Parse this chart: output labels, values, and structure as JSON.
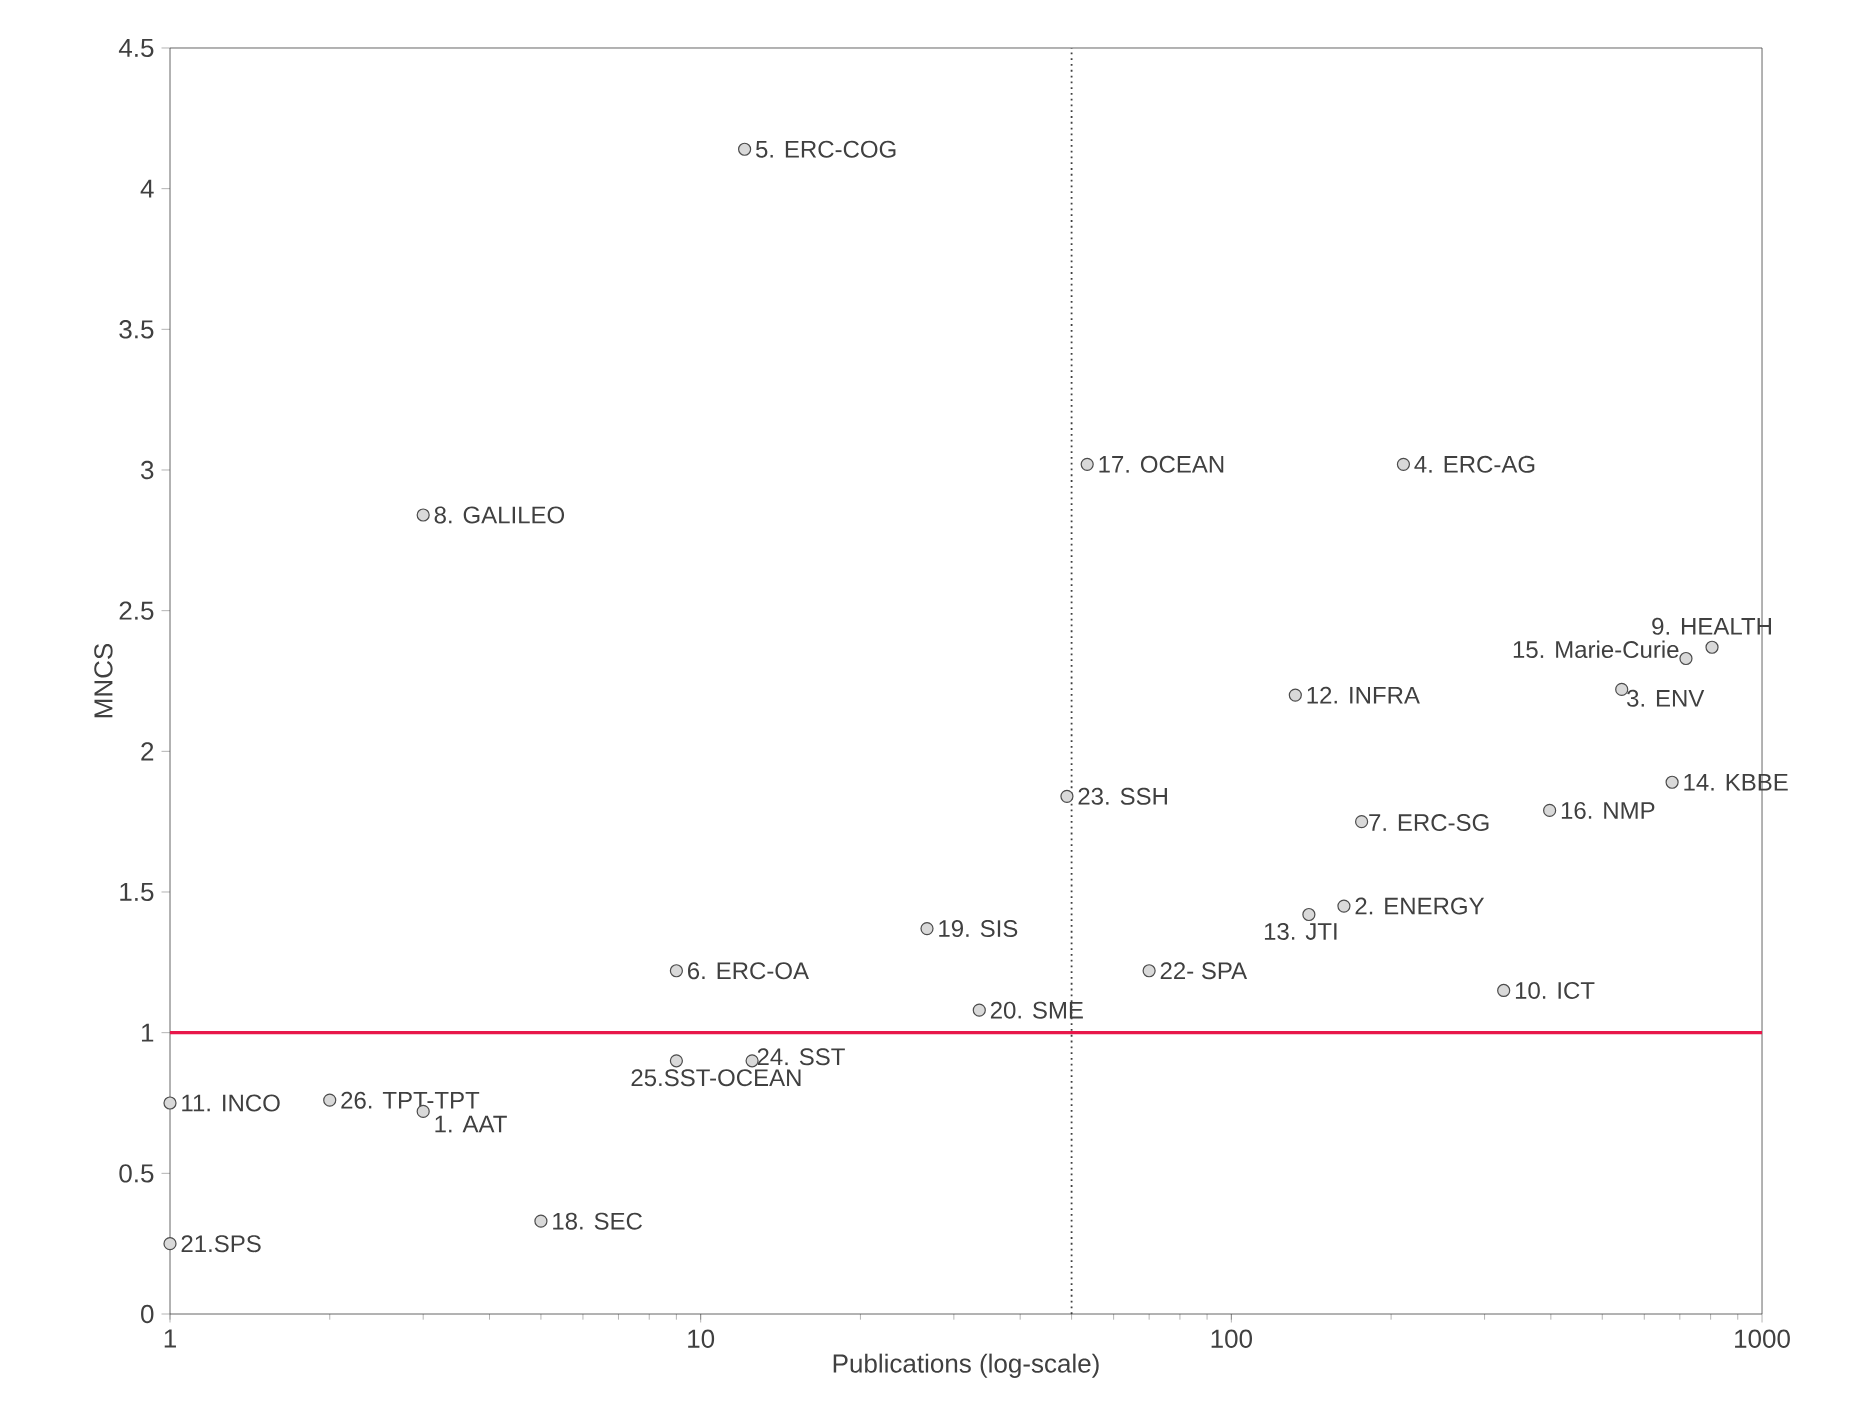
{
  "chart_data": {
    "type": "scatter",
    "xlabel": "Publications (log-scale)",
    "ylabel": "MNCS",
    "log": "x",
    "marker": "circle",
    "color": "#d9d9d9",
    "xlim": [
      1,
      1000
    ],
    "ylim": [
      0,
      4.5
    ],
    "xticks": [
      1,
      10,
      100,
      1000
    ],
    "yticks": [
      0,
      0.5,
      1,
      1.5,
      2,
      2.5,
      3,
      3.5,
      4,
      4.5
    ],
    "x": [
      3,
      163,
      544,
      211,
      12.1,
      9,
      176,
      3,
      805,
      326,
      1,
      132,
      140,
      677,
      719,
      398,
      53.5,
      5,
      26.7,
      33.5,
      1,
      70,
      49,
      12.5,
      9,
      2
    ],
    "values": [
      0.72,
      1.45,
      2.22,
      3.02,
      4.14,
      1.22,
      1.75,
      2.84,
      2.37,
      1.15,
      0.75,
      2.2,
      1.42,
      1.89,
      2.33,
      1.79,
      3.02,
      0.33,
      1.37,
      1.08,
      0.25,
      1.22,
      1.84,
      0.9,
      0.9,
      0.76
    ],
    "ref_lines": [
      {
        "axis": "y",
        "value": 1,
        "color": "#e8174a",
        "line_style": "solid"
      },
      {
        "axis": "x",
        "value": 50,
        "color": "#404040",
        "line_style": "dotted"
      }
    ],
    "annotations": [
      {
        "text": "1. AAT",
        "x": 3,
        "y": 0.72
      },
      {
        "text": "2. ENERGY",
        "x": 163,
        "y": 1.45
      },
      {
        "text": "3. ENV",
        "x": 544,
        "y": 2.22
      },
      {
        "text": "4. ERC-AG",
        "x": 211,
        "y": 3.02
      },
      {
        "text": "5. ERC-COG",
        "x": 12.1,
        "y": 4.14
      },
      {
        "text": "6. ERC-OA",
        "x": 9,
        "y": 1.22
      },
      {
        "text": "7. ERC-SG",
        "x": 176,
        "y": 1.75
      },
      {
        "text": "8. GALILEO",
        "x": 3,
        "y": 2.84
      },
      {
        "text": "9. HEALTH",
        "x": 805,
        "y": 2.37
      },
      {
        "text": "10. ICT",
        "x": 326,
        "y": 1.15
      },
      {
        "text": "11. INCO",
        "x": 1,
        "y": 0.75
      },
      {
        "text": "12. INFRA",
        "x": 132,
        "y": 2.2
      },
      {
        "text": "13. JTI",
        "x": 140,
        "y": 1.42
      },
      {
        "text": "14. KBBE",
        "x": 677,
        "y": 1.89
      },
      {
        "text": "15. Marie-Curie",
        "x": 719,
        "y": 2.33
      },
      {
        "text": "16. NMP",
        "x": 398,
        "y": 1.79
      },
      {
        "text": "17. OCEAN",
        "x": 53.5,
        "y": 3.02
      },
      {
        "text": "18. SEC",
        "x": 5,
        "y": 0.33
      },
      {
        "text": "19. SIS",
        "x": 26.7,
        "y": 1.37
      },
      {
        "text": "20. SME",
        "x": 33.5,
        "y": 1.08
      },
      {
        "text": "21.SPS",
        "x": 1,
        "y": 0.25
      },
      {
        "text": "22- SPA",
        "x": 70,
        "y": 1.22
      },
      {
        "text": "23. SSH",
        "x": 49,
        "y": 1.84
      },
      {
        "text": "24. SST",
        "x": 12.5,
        "y": 0.9
      },
      {
        "text": "25.SST-OCEAN",
        "x": 9,
        "y": 0.9
      },
      {
        "text": "26. TPT-TPT",
        "x": 2,
        "y": 0.76
      }
    ]
  }
}
